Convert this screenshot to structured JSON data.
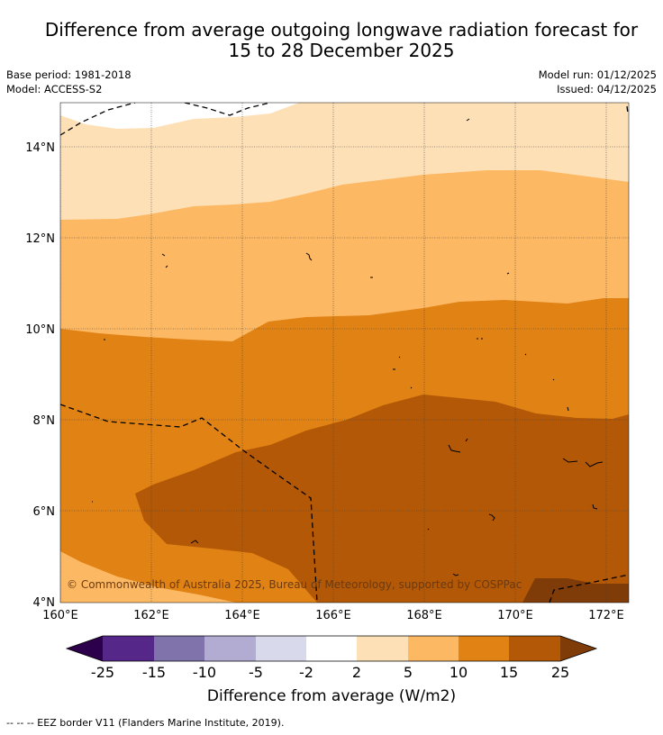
{
  "title": {
    "line1": "Difference from average outgoing longwave radiation forecast for",
    "line2": "15 to 28 December 2025"
  },
  "meta": {
    "base_period": "Base period: 1981-2018",
    "model": "Model: ACCESS-S2",
    "model_run": "Model run: 01/12/2025",
    "issued": "Issued: 04/12/2025"
  },
  "map": {
    "lon_labels": [
      "160°E",
      "162°E",
      "164°E",
      "166°E",
      "168°E",
      "170°E",
      "172°E"
    ],
    "lat_labels": [
      "14°N",
      "12°N",
      "10°N",
      "8°N",
      "6°N",
      "4°N"
    ],
    "copyright": "© Commonwealth of Australia 2025, Bureau of Meteorology, supported by COSPPac"
  },
  "colorbar": {
    "tick_labels": [
      "-25",
      "-15",
      "-10",
      "-5",
      "-2",
      "2",
      "5",
      "10",
      "15",
      "25"
    ],
    "colors": {
      "under": "#2d004b",
      "c1": "#542788",
      "c2": "#8073ac",
      "c3": "#b2abd2",
      "c4": "#d8daeb",
      "c5": "#ffffff",
      "c6": "#fee0b6",
      "c7": "#fdb863",
      "c8": "#e08214",
      "c9": "#b35806",
      "over": "#7f3b08"
    },
    "title": "Difference from average (W/m2)"
  },
  "legend": {
    "eez": "--  --  -- EEZ border V11 (Flanders Marine Institute, 2019)."
  }
}
